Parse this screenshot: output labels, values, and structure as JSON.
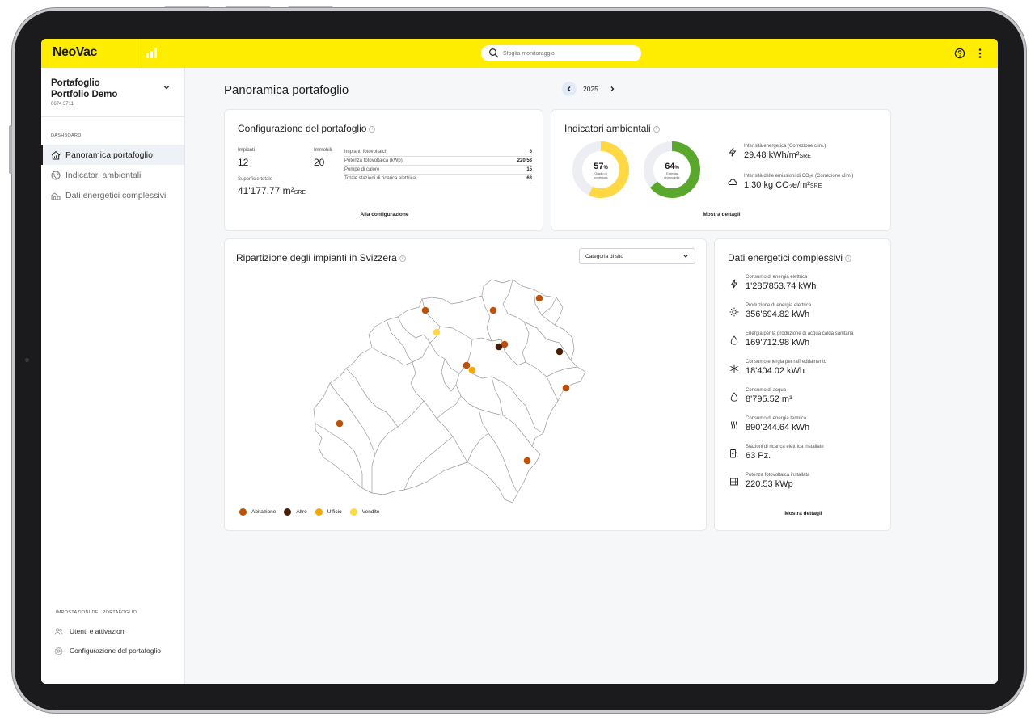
{
  "app": {
    "logo_text": "NeoVac"
  },
  "search": {
    "placeholder": "Sfoglia monitoraggio"
  },
  "sidebar": {
    "portfolio_line1": "Portafoglio",
    "portfolio_line2": "Portfolio Demo",
    "portfolio_id": "0674 3711",
    "dashboard_label": "DASHBOARD",
    "items": [
      {
        "label": "Panoramica portafoglio",
        "icon": "home-chart-icon",
        "active": true
      },
      {
        "label": "Indicatori ambientali",
        "icon": "globe-icon"
      },
      {
        "label": "Dati energetici complessivi",
        "icon": "buildings-icon"
      }
    ],
    "settings_label": "IMPOSTAZIONI DEL PORTAFOGLIO",
    "settings_items": [
      {
        "label": "Utenti e attivazioni",
        "icon": "users-icon"
      },
      {
        "label": "Configurazione del portafoglio",
        "icon": "gear-icon"
      }
    ]
  },
  "header": {
    "title": "Panoramica portafoglio",
    "year": "2025"
  },
  "config_card": {
    "title": "Configurazione del portafoglio",
    "impianti_label": "Impianti",
    "impianti_value": "12",
    "immobili_label": "Immobili",
    "immobili_value": "20",
    "superficie_label": "Superficie totale",
    "superficie_value": "41'177.77 m²",
    "superficie_unit": "SRE",
    "rows": [
      {
        "label": "Impianti fotovoltaici",
        "value": "6"
      },
      {
        "label": "Potenza fotovoltaica (kWp)",
        "value": "220.53"
      },
      {
        "label": "Pompe di calore",
        "value": "15"
      },
      {
        "label": "Totale stazioni di ricarica elettrica",
        "value": "63"
      }
    ],
    "link": "Alla configurazione"
  },
  "env_card": {
    "title": "Indicatori ambientali",
    "donut1": {
      "pct": "57",
      "pct_sign": "%",
      "caption": "Grado di copertura",
      "value": 0.57,
      "color": "#ffd843"
    },
    "donut2": {
      "pct": "64",
      "pct_sign": "%",
      "caption": "Energia rinnovabile",
      "value": 0.64,
      "color": "#5aa72d"
    },
    "items": [
      {
        "label": "Intensità energetica (Correzione clim.)",
        "value": "29.48 kWh/m²",
        "unit": "SRE",
        "icon": "lightning-icon"
      },
      {
        "label": "Intensità delle emissioni di CO₂e (Correzione clim.)",
        "value": "1.30 kg CO₂e/m²",
        "unit": "SRE",
        "icon": "cloud-icon"
      }
    ],
    "link": "Mostra dettagli"
  },
  "map_card": {
    "title": "Ripartizione degli impianti in Svizzera",
    "select_value": "Categoria di sito",
    "legend": [
      {
        "label": "Abitazione",
        "color": "#c05006"
      },
      {
        "label": "Altro",
        "color": "#4a1e06"
      },
      {
        "label": "Ufficio",
        "color": "#f5a800"
      },
      {
        "label": "Vendite",
        "color": "#ffd843"
      }
    ]
  },
  "energy_card": {
    "title": "Dati energetici complessivi",
    "items": [
      {
        "label": "Consumo di energia elettrica",
        "value": "1'285'853.74 kWh",
        "icon": "lightning-icon"
      },
      {
        "label": "Produzione di energia elettrica",
        "value": "356'694.82 kWh",
        "icon": "sun-icon"
      },
      {
        "label": "Energia per la produzione di acqua calda sanitaria",
        "value": "169'712.98 kWh",
        "icon": "drop-icon"
      },
      {
        "label": "Consumo energia per raffreddamento",
        "value": "18'404.02 kWh",
        "icon": "snowflake-icon"
      },
      {
        "label": "Consumo di acqua",
        "value": "8'795.52 m³",
        "icon": "water-drop-icon"
      },
      {
        "label": "Consumo di energia termica",
        "value": "890'244.64 kWh",
        "icon": "heat-icon"
      },
      {
        "label": "Stazioni di ricarica elettrica installate",
        "value": "63 Pz.",
        "icon": "charging-station-icon"
      },
      {
        "label": "Potenza fotovoltaica installata",
        "value": "220.53 kWp",
        "icon": "solar-panel-icon"
      }
    ],
    "link": "Mostra dettagli"
  }
}
